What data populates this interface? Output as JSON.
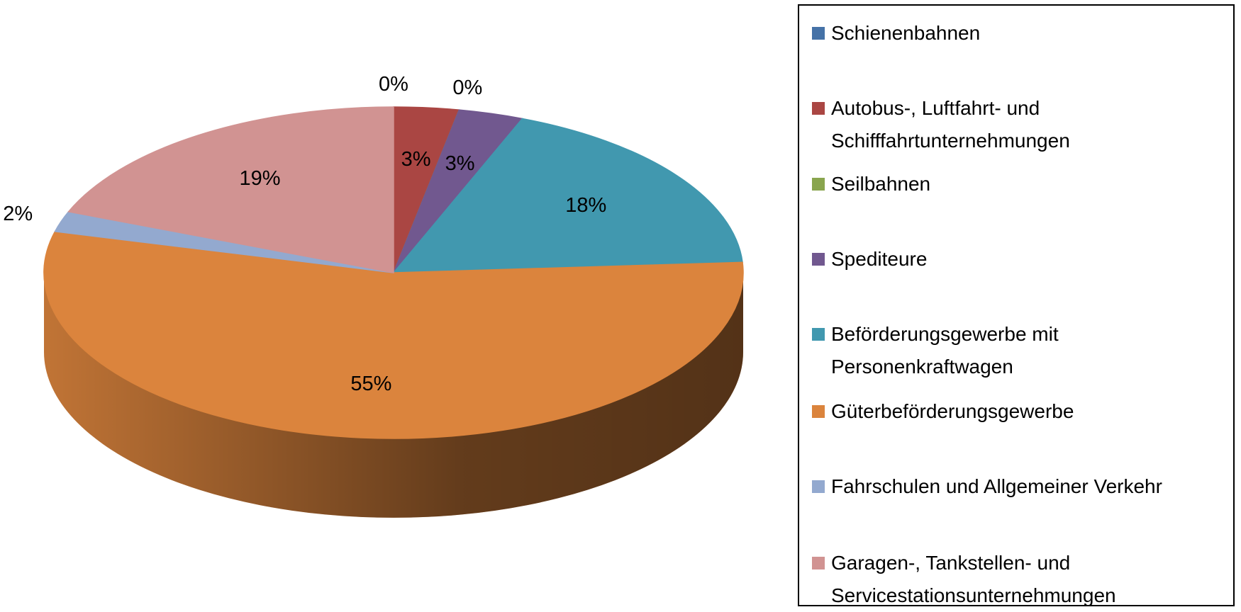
{
  "chart_data": {
    "type": "pie",
    "categories": [
      "Schienenbahnen",
      "Autobus-, Luftfahrt- und Schifffahrtunternehmungen",
      "Seilbahnen",
      "Spediteure",
      "Beförderungsgewerbe mit Personenkraftwagen",
      "Güterbeförderungsgewerbe",
      "Fahrschulen und Allgemeiner Verkehr",
      "Garagen-, Tankstellen- und Servicestationsunternehmungen"
    ],
    "values": [
      0,
      3,
      0,
      3,
      18,
      55,
      2,
      19
    ],
    "value_labels": [
      "0%",
      "3%",
      "0%",
      "3%",
      "18%",
      "55%",
      "2%",
      "19%"
    ],
    "colors": [
      "#4572a7",
      "#aa4643",
      "#89a54e",
      "#71588f",
      "#4198af",
      "#db843d",
      "#93a9cf",
      "#d19392"
    ],
    "legend": "right"
  }
}
